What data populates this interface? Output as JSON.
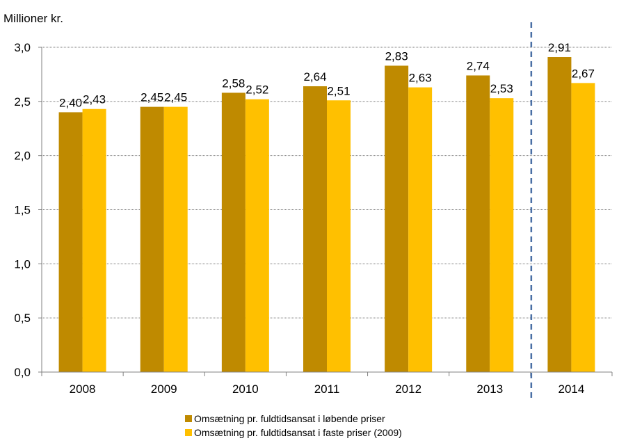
{
  "chart_data": {
    "type": "bar",
    "ylabel": "Millioner kr.",
    "categories": [
      "2008",
      "2009",
      "2010",
      "2011",
      "2012",
      "2013",
      "2014"
    ],
    "series": [
      {
        "name": "Omsætning pr. fuldtidsansat i løbende priser",
        "color": "#BF8A00",
        "values": [
          2.4,
          2.45,
          2.58,
          2.64,
          2.83,
          2.74,
          2.91
        ],
        "labels": [
          "2,40",
          "2,45",
          "2,58",
          "2,64",
          "2,83",
          "2,74",
          "2,91"
        ]
      },
      {
        "name": "Omsætning pr. fuldtidsansat i faste priser (2009)",
        "color": "#FFC000",
        "values": [
          2.43,
          2.45,
          2.52,
          2.51,
          2.63,
          2.53,
          2.67
        ],
        "labels": [
          "2,43",
          "2,45",
          "2,52",
          "2,51",
          "2,63",
          "2,53",
          "2,67"
        ]
      }
    ],
    "ylim": [
      0,
      3.0
    ],
    "yticks": [
      0,
      0.5,
      1.0,
      1.5,
      2.0,
      2.5,
      3.0
    ],
    "ytick_labels": [
      "0,0",
      "0,5",
      "1,0",
      "1,5",
      "2,0",
      "2,5",
      "3,0"
    ],
    "grid": true,
    "divider_after": "2013",
    "divider_color": "#4A6FA5",
    "legend_position": "bottom"
  }
}
